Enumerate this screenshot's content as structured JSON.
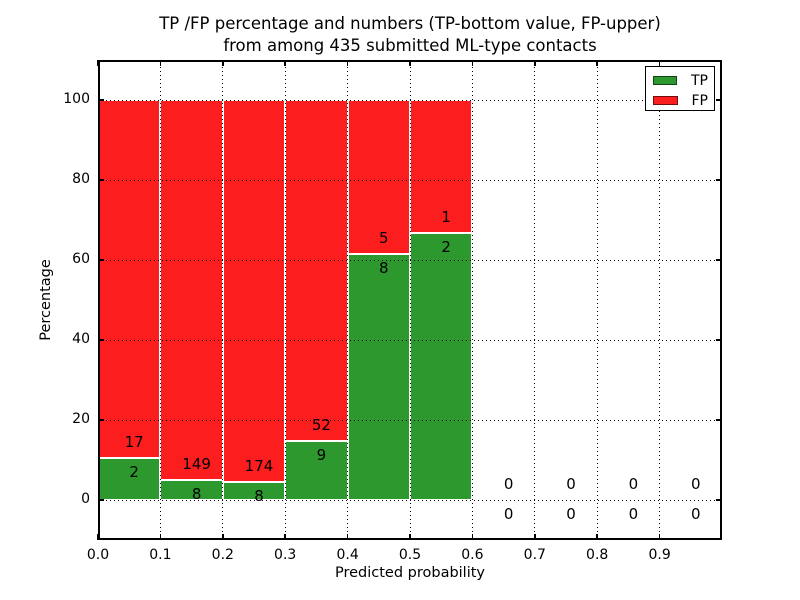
{
  "title": {
    "line1": "TP /FP percentage and numbers (TP-bottom value, FP-upper)",
    "line2": "from among 435 submitted ML-type contacts"
  },
  "axes": {
    "xlabel": "Predicted probability",
    "ylabel": "Percentage",
    "xlim": [
      0.0,
      1.0
    ],
    "ylim": [
      -10,
      110
    ],
    "xtick_labels": [
      "0.0",
      "0.1",
      "0.2",
      "0.3",
      "0.4",
      "0.5",
      "0.6",
      "0.7",
      "0.8",
      "0.9"
    ],
    "ytick_values": [
      0,
      20,
      40,
      60,
      80,
      100
    ],
    "grid_style": "dotted"
  },
  "legend": {
    "position": "upper right",
    "items": [
      {
        "label": "TP",
        "color": "#2d982d"
      },
      {
        "label": "FP",
        "color": "#fc1e1e"
      }
    ]
  },
  "chart_data": {
    "type": "bar",
    "stacked": true,
    "title": "TP /FP percentage and numbers (TP-bottom value, FP-upper) from among 435 submitted ML-type contacts",
    "xlabel": "Predicted probability",
    "ylabel": "Percentage",
    "total_contacts": 435,
    "bin_width": 0.1,
    "note": "Bars show TP% (green, bottom) and FP% (red, top) of each bin; labels show raw counts (FP above boundary, TP below)",
    "bins": [
      {
        "x0": 0.0,
        "x1": 0.1,
        "tp": 2,
        "fp": 17,
        "tp_pct": 10.5,
        "fp_pct": 89.5
      },
      {
        "x0": 0.1,
        "x1": 0.2,
        "tp": 8,
        "fp": 149,
        "tp_pct": 5.1,
        "fp_pct": 94.9
      },
      {
        "x0": 0.2,
        "x1": 0.3,
        "tp": 8,
        "fp": 174,
        "tp_pct": 4.4,
        "fp_pct": 95.6
      },
      {
        "x0": 0.3,
        "x1": 0.4,
        "tp": 9,
        "fp": 52,
        "tp_pct": 14.8,
        "fp_pct": 85.2
      },
      {
        "x0": 0.4,
        "x1": 0.5,
        "tp": 8,
        "fp": 5,
        "tp_pct": 61.5,
        "fp_pct": 38.5
      },
      {
        "x0": 0.5,
        "x1": 0.6,
        "tp": 2,
        "fp": 1,
        "tp_pct": 66.7,
        "fp_pct": 33.3
      },
      {
        "x0": 0.6,
        "x1": 0.7,
        "tp": 0,
        "fp": 0,
        "tp_pct": 0,
        "fp_pct": 0
      },
      {
        "x0": 0.7,
        "x1": 0.8,
        "tp": 0,
        "fp": 0,
        "tp_pct": 0,
        "fp_pct": 0
      },
      {
        "x0": 0.8,
        "x1": 0.9,
        "tp": 0,
        "fp": 0,
        "tp_pct": 0,
        "fp_pct": 0
      },
      {
        "x0": 0.9,
        "x1": 1.0,
        "tp": 0,
        "fp": 0,
        "tp_pct": 0,
        "fp_pct": 0
      }
    ],
    "series_colors": {
      "tp": "#2d982d",
      "fp": "#fc1e1e"
    },
    "edge_color": "#ffffff"
  }
}
